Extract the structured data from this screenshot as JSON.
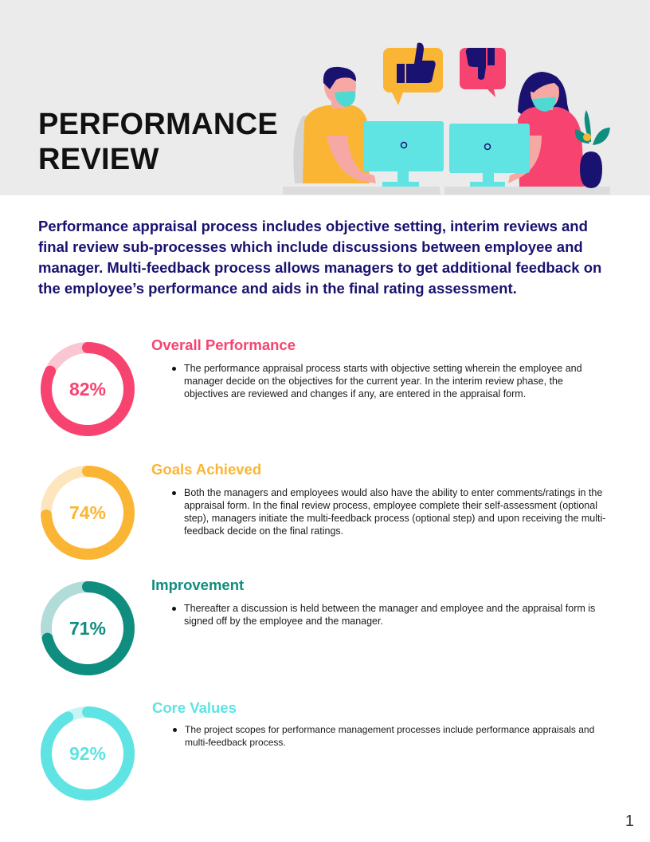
{
  "header": {
    "title_line1": "PERFORMANCE",
    "title_line2": "REVIEW"
  },
  "intro": "Performance appraisal process includes objective setting, interim reviews and final review sub-processes which include discussions between employee and manager. Multi-feedback process allows managers to get additional feedback on the employee’s performance and aids in the final rating assessment.",
  "colors": {
    "pink": "#f7436f",
    "pink_track": "#fbc6d3",
    "orange": "#fbb534",
    "orange_track": "#fde5bd",
    "teal": "#0f8d7e",
    "teal_track": "#b2dcd8",
    "cyan": "#5fe3e3",
    "cyan_track": "#c9f4f4",
    "navy": "#1a1270"
  },
  "sections": [
    {
      "title": "Overall Performance",
      "percent_label": "82%",
      "value": 0.82,
      "bullets": [
        "The performance appraisal process starts with objective setting wherein the employee and manager decide on the objectives for the current year. In the interim review phase, the objectives are reviewed and changes if any, are entered in the appraisal form."
      ]
    },
    {
      "title": "Goals Achieved",
      "percent_label": "74%",
      "value": 0.74,
      "bullets": [
        "Both the managers and employees would also have the ability to enter comments/ratings in the appraisal form. In the final review process, employee complete their self-assessment (optional step), managers initiate the multi-feedback process (optional step) and upon receiving the multi-feedback decide on the final ratings."
      ]
    },
    {
      "title": "Improvement",
      "percent_label": "71%",
      "value": 0.71,
      "bullets": [
        "Thereafter a discussion is held between the manager and employee and the appraisal form is signed off by the employee and the manager."
      ]
    },
    {
      "title": "Core Values",
      "percent_label": "92%",
      "value": 0.92,
      "bullets": [
        "The project scopes for performance management processes include performance appraisals and multi-feedback process."
      ]
    }
  ],
  "page_number": "1"
}
